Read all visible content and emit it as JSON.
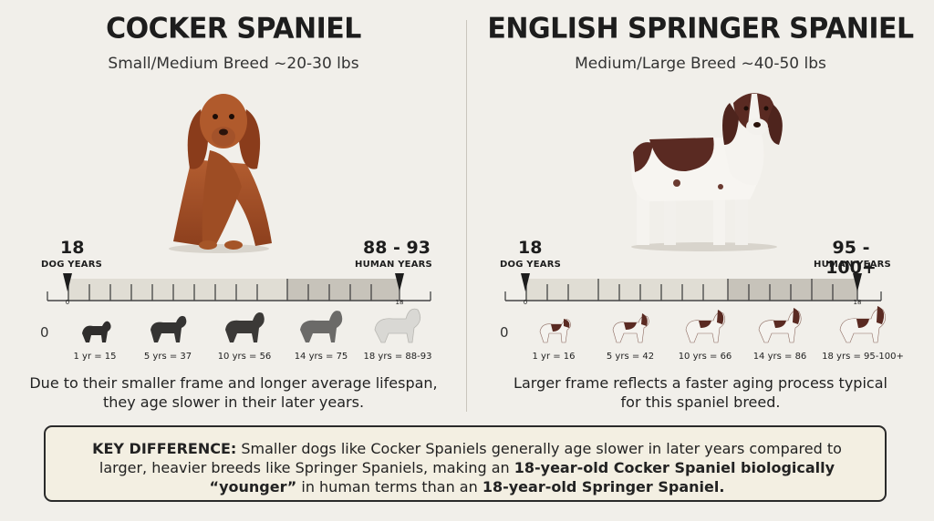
{
  "left": {
    "title": "COCKER SPANIEL",
    "subtitle": "Small/Medium Breed ~20-30 lbs",
    "dog_years_value": "18",
    "dog_years_label": "DOG YEARS",
    "human_years_value": "88 - 93",
    "human_years_label": "HUMAN YEARS",
    "scale_start": "0",
    "scale_end": "18",
    "zero_label": "0",
    "milestones": [
      "1 yr = 15",
      "5 yrs = 37",
      "10 yrs = 56",
      "14 yrs = 75",
      "18 yrs = 88-93"
    ],
    "caption_line1": "Due to their smaller frame and longer average lifespan,",
    "caption_line2": "they age slower in their later years.",
    "colors": {
      "coat": "#a8522a",
      "silhouettes": [
        "#2f2d2c",
        "#353433",
        "#3b3937",
        "#6b6a68",
        "#d9d8d4"
      ]
    }
  },
  "right": {
    "title": "ENGLISH SPRINGER SPANIEL",
    "subtitle": "Medium/Large Breed ~40-50 lbs",
    "dog_years_value": "18",
    "dog_years_label": "DOG YEARS",
    "human_years_value": "95 - 100+",
    "human_years_label": "HUMAN YEARS",
    "scale_start": "0",
    "scale_end": "18",
    "zero_label": "0",
    "milestones": [
      "1 yr = 16",
      "5 yrs = 42",
      "10 yrs = 66",
      "14 yrs = 86",
      "18 yrs = 95-100+"
    ],
    "caption_line1": "Larger frame reflects a faster aging process typical",
    "caption_line2": "for this spaniel breed.",
    "colors": {
      "liver": "#5a2a22",
      "white": "#f7f5f1"
    }
  },
  "key": {
    "lead": "KEY DIFFERENCE:",
    "part1": " Smaller dogs like Cocker Spaniels generally age slower in later years compared to",
    "part2": "larger, heavier breeds like Springer Spaniels, making an ",
    "bold1": "18-year-old Cocker Spaniel biologically",
    "bold2": "“younger”",
    "part3": " in human terms than an ",
    "bold3": "18-year-old Springer Spaniel."
  }
}
